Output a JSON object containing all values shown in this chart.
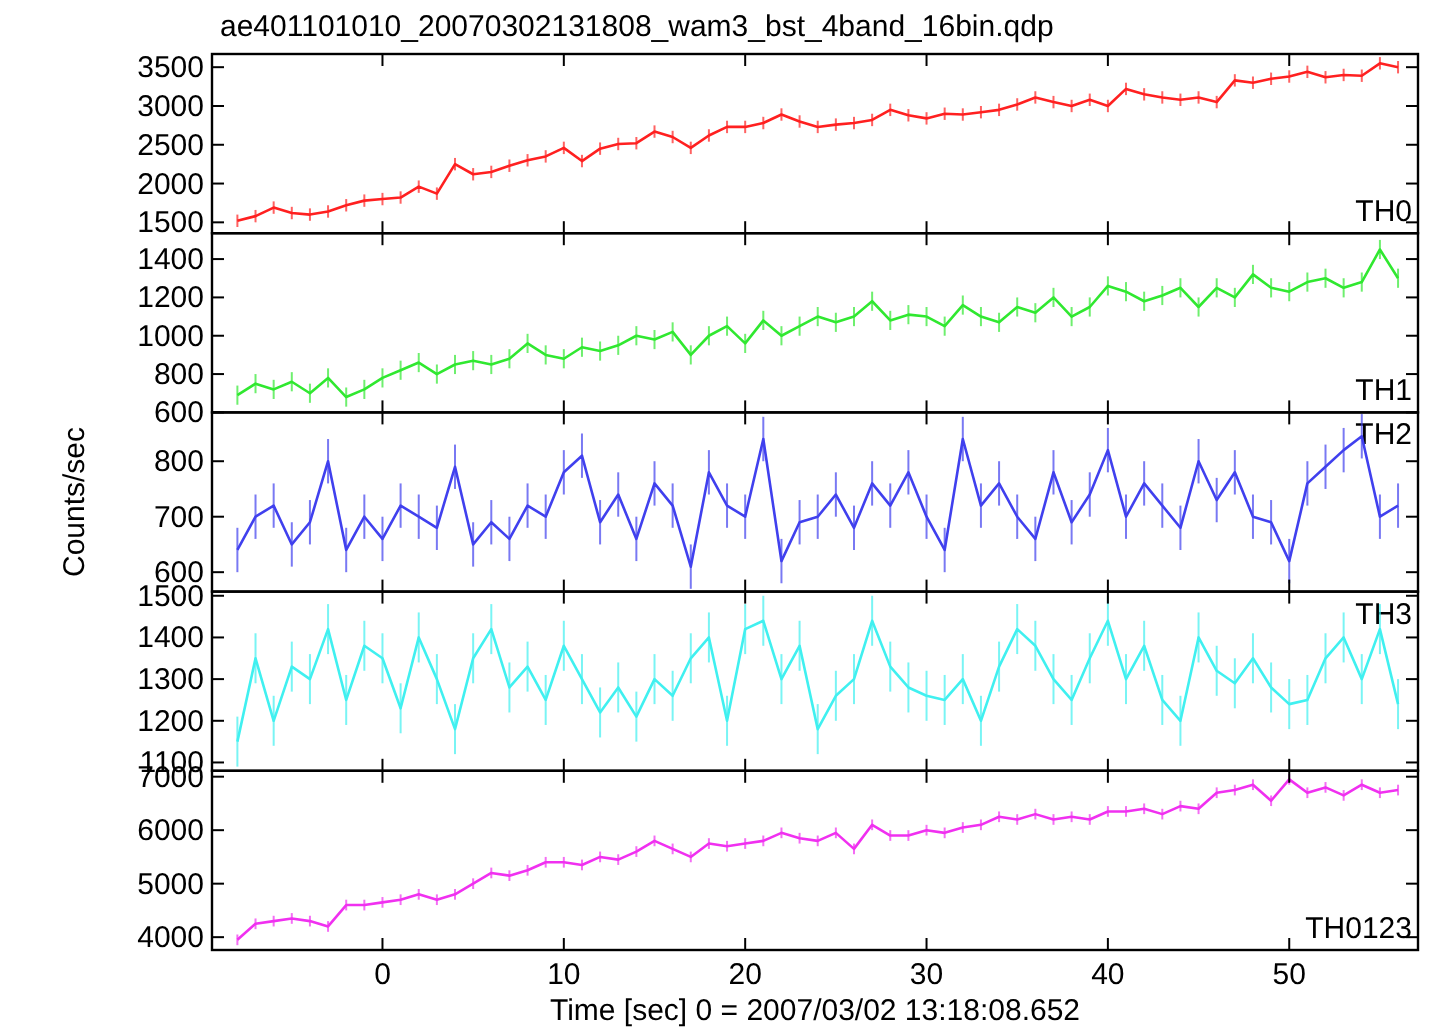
{
  "chart_data": [
    {
      "type": "line",
      "title": "ae401101010_20070302131808_wam3_bst_4band_16bin.qdp",
      "tick_labels": "y",
      "marker": "none",
      "line_style": "solid",
      "xlim": [
        -9.4,
        57.1
      ],
      "xticks": [
        0,
        10,
        20,
        30,
        40,
        50
      ],
      "ylim": [
        1360,
        3670
      ],
      "yticks": [
        1500,
        2000,
        2500,
        3000,
        3500
      ],
      "x": [
        -8,
        -7,
        -6,
        -5,
        -4,
        -3,
        -2,
        -1,
        0,
        1,
        2,
        3,
        4,
        5,
        6,
        7,
        8,
        9,
        10,
        11,
        12,
        13,
        14,
        15,
        16,
        17,
        18,
        19,
        20,
        21,
        22,
        23,
        24,
        25,
        26,
        27,
        28,
        29,
        30,
        31,
        32,
        33,
        34,
        35,
        36,
        37,
        38,
        39,
        40,
        41,
        42,
        43,
        44,
        45,
        46,
        47,
        48,
        49,
        50,
        51,
        52,
        53,
        54,
        55,
        56
      ],
      "series": [
        {
          "name": "TH0",
          "color": "#ff2020",
          "values": [
            1520,
            1580,
            1690,
            1620,
            1600,
            1640,
            1720,
            1780,
            1800,
            1820,
            1960,
            1870,
            2250,
            2120,
            2150,
            2230,
            2300,
            2350,
            2460,
            2290,
            2450,
            2510,
            2520,
            2670,
            2600,
            2460,
            2620,
            2730,
            2730,
            2780,
            2890,
            2800,
            2730,
            2760,
            2780,
            2820,
            2950,
            2880,
            2840,
            2900,
            2890,
            2920,
            2950,
            3020,
            3110,
            3050,
            3000,
            3080,
            3000,
            3220,
            3150,
            3110,
            3080,
            3110,
            3050,
            3330,
            3300,
            3350,
            3380,
            3440,
            3370,
            3400,
            3390,
            3550,
            3500
          ],
          "errors": [
            80,
            80,
            80,
            80,
            80,
            80,
            80,
            80,
            80,
            80,
            80,
            80,
            80,
            80,
            80,
            80,
            80,
            80,
            80,
            80,
            80,
            80,
            80,
            80,
            80,
            80,
            80,
            80,
            80,
            80,
            80,
            80,
            80,
            80,
            80,
            80,
            80,
            80,
            80,
            80,
            80,
            80,
            80,
            80,
            80,
            80,
            80,
            80,
            80,
            80,
            80,
            80,
            80,
            80,
            80,
            80,
            80,
            80,
            80,
            80,
            80,
            80,
            80,
            80,
            80
          ]
        }
      ]
    },
    {
      "type": "line",
      "tick_labels": "y",
      "marker": "none",
      "line_style": "solid",
      "xlim": [
        -9.4,
        57.1
      ],
      "xticks": [
        0,
        10,
        20,
        30,
        40,
        50
      ],
      "ylim": [
        600,
        1535
      ],
      "yticks": [
        600,
        800,
        1000,
        1200,
        1400
      ],
      "x": [
        -8,
        -7,
        -6,
        -5,
        -4,
        -3,
        -2,
        -1,
        0,
        1,
        2,
        3,
        4,
        5,
        6,
        7,
        8,
        9,
        10,
        11,
        12,
        13,
        14,
        15,
        16,
        17,
        18,
        19,
        20,
        21,
        22,
        23,
        24,
        25,
        26,
        27,
        28,
        29,
        30,
        31,
        32,
        33,
        34,
        35,
        36,
        37,
        38,
        39,
        40,
        41,
        42,
        43,
        44,
        45,
        46,
        47,
        48,
        49,
        50,
        51,
        52,
        53,
        54,
        55,
        56
      ],
      "series": [
        {
          "name": "TH1",
          "color": "#30e830",
          "values": [
            690,
            750,
            720,
            760,
            700,
            780,
            680,
            720,
            780,
            820,
            860,
            800,
            850,
            870,
            850,
            880,
            960,
            900,
            880,
            940,
            920,
            950,
            1000,
            980,
            1020,
            900,
            1000,
            1050,
            960,
            1080,
            1000,
            1050,
            1100,
            1070,
            1100,
            1180,
            1080,
            1110,
            1100,
            1050,
            1160,
            1100,
            1070,
            1150,
            1120,
            1200,
            1100,
            1150,
            1260,
            1230,
            1180,
            1210,
            1250,
            1150,
            1250,
            1200,
            1320,
            1250,
            1230,
            1280,
            1300,
            1250,
            1280,
            1450,
            1300
          ],
          "errors": [
            50,
            50,
            50,
            50,
            50,
            50,
            50,
            50,
            50,
            50,
            50,
            50,
            50,
            50,
            50,
            50,
            50,
            50,
            50,
            50,
            50,
            50,
            50,
            50,
            50,
            50,
            50,
            50,
            50,
            50,
            50,
            50,
            50,
            50,
            50,
            50,
            50,
            50,
            50,
            50,
            50,
            50,
            50,
            50,
            50,
            50,
            50,
            50,
            50,
            50,
            50,
            50,
            50,
            50,
            50,
            50,
            50,
            50,
            50,
            50,
            50,
            50,
            50,
            50,
            50
          ]
        }
      ]
    },
    {
      "type": "line",
      "ylabel": "Counts/sec",
      "tick_labels": "y",
      "marker": "none",
      "line_style": "solid",
      "xlim": [
        -9.4,
        57.1
      ],
      "xticks": [
        0,
        10,
        20,
        30,
        40,
        50
      ],
      "ylim": [
        565,
        888
      ],
      "yticks": [
        600,
        700,
        800
      ],
      "x": [
        -8,
        -7,
        -6,
        -5,
        -4,
        -3,
        -2,
        -1,
        0,
        1,
        2,
        3,
        4,
        5,
        6,
        7,
        8,
        9,
        10,
        11,
        12,
        13,
        14,
        15,
        16,
        17,
        18,
        19,
        20,
        21,
        22,
        23,
        24,
        25,
        26,
        27,
        28,
        29,
        30,
        31,
        32,
        33,
        34,
        35,
        36,
        37,
        38,
        39,
        40,
        41,
        42,
        43,
        44,
        45,
        46,
        47,
        48,
        49,
        50,
        51,
        52,
        53,
        54,
        55,
        56
      ],
      "series": [
        {
          "name": "TH2",
          "color": "#4040ee",
          "values": [
            640,
            700,
            720,
            650,
            690,
            800,
            640,
            700,
            660,
            720,
            700,
            680,
            790,
            650,
            690,
            660,
            720,
            700,
            780,
            810,
            690,
            740,
            660,
            760,
            720,
            610,
            780,
            720,
            700,
            840,
            620,
            690,
            700,
            740,
            680,
            760,
            720,
            780,
            700,
            640,
            840,
            720,
            760,
            700,
            660,
            780,
            690,
            740,
            820,
            700,
            760,
            720,
            680,
            800,
            730,
            780,
            700,
            690,
            620,
            760,
            790,
            820,
            845,
            700,
            720
          ],
          "errors": [
            40,
            40,
            40,
            40,
            40,
            40,
            40,
            40,
            40,
            40,
            40,
            40,
            40,
            40,
            40,
            40,
            40,
            40,
            40,
            40,
            40,
            40,
            40,
            40,
            40,
            40,
            40,
            40,
            40,
            40,
            40,
            40,
            40,
            40,
            40,
            40,
            40,
            40,
            40,
            40,
            40,
            40,
            40,
            40,
            40,
            40,
            40,
            40,
            40,
            40,
            40,
            40,
            40,
            40,
            40,
            40,
            40,
            40,
            40,
            40,
            40,
            40,
            40,
            40,
            40
          ]
        }
      ]
    },
    {
      "type": "line",
      "tick_labels": "y",
      "marker": "none",
      "line_style": "solid",
      "xlim": [
        -9.4,
        57.1
      ],
      "xticks": [
        0,
        10,
        20,
        30,
        40,
        50
      ],
      "ylim": [
        1080,
        1510
      ],
      "yticks": [
        1100,
        1200,
        1300,
        1400,
        1500
      ],
      "x": [
        -8,
        -7,
        -6,
        -5,
        -4,
        -3,
        -2,
        -1,
        0,
        1,
        2,
        3,
        4,
        5,
        6,
        7,
        8,
        9,
        10,
        11,
        12,
        13,
        14,
        15,
        16,
        17,
        18,
        19,
        20,
        21,
        22,
        23,
        24,
        25,
        26,
        27,
        28,
        29,
        30,
        31,
        32,
        33,
        34,
        35,
        36,
        37,
        38,
        39,
        40,
        41,
        42,
        43,
        44,
        45,
        46,
        47,
        48,
        49,
        50,
        51,
        52,
        53,
        54,
        55,
        56
      ],
      "series": [
        {
          "name": "TH3",
          "color": "#40f0f0",
          "values": [
            1150,
            1350,
            1200,
            1330,
            1300,
            1420,
            1250,
            1380,
            1350,
            1230,
            1400,
            1300,
            1180,
            1350,
            1420,
            1280,
            1330,
            1250,
            1380,
            1300,
            1220,
            1280,
            1210,
            1300,
            1260,
            1350,
            1400,
            1200,
            1420,
            1440,
            1300,
            1380,
            1180,
            1260,
            1300,
            1440,
            1330,
            1280,
            1260,
            1250,
            1300,
            1200,
            1330,
            1420,
            1380,
            1300,
            1250,
            1350,
            1440,
            1300,
            1380,
            1250,
            1200,
            1400,
            1320,
            1290,
            1350,
            1280,
            1240,
            1250,
            1350,
            1400,
            1300,
            1420,
            1240
          ],
          "errors": [
            60,
            60,
            60,
            60,
            60,
            60,
            60,
            60,
            60,
            60,
            60,
            60,
            60,
            60,
            60,
            60,
            60,
            60,
            60,
            60,
            60,
            60,
            60,
            60,
            60,
            60,
            60,
            60,
            60,
            60,
            60,
            60,
            60,
            60,
            60,
            60,
            60,
            60,
            60,
            60,
            60,
            60,
            60,
            60,
            60,
            60,
            60,
            60,
            60,
            60,
            60,
            60,
            60,
            60,
            60,
            60,
            60,
            60,
            60,
            60,
            60,
            60,
            60,
            60,
            60
          ]
        }
      ]
    },
    {
      "type": "line",
      "xlabel": "Time [sec] 0 = 2007/03/02 13:18:08.652",
      "marker": "none",
      "line_style": "solid",
      "xlim": [
        -9.4,
        57.1
      ],
      "xticks": [
        0,
        10,
        20,
        30,
        40,
        50
      ],
      "ylim": [
        3760,
        7110
      ],
      "yticks": [
        4000,
        5000,
        6000,
        7000
      ],
      "x": [
        -8,
        -7,
        -6,
        -5,
        -4,
        -3,
        -2,
        -1,
        0,
        1,
        2,
        3,
        4,
        5,
        6,
        7,
        8,
        9,
        10,
        11,
        12,
        13,
        14,
        15,
        16,
        17,
        18,
        19,
        20,
        21,
        22,
        23,
        24,
        25,
        26,
        27,
        28,
        29,
        30,
        31,
        32,
        33,
        34,
        35,
        36,
        37,
        38,
        39,
        40,
        41,
        42,
        43,
        44,
        45,
        46,
        47,
        48,
        49,
        50,
        51,
        52,
        53,
        54,
        55,
        56
      ],
      "series": [
        {
          "name": "TH0123",
          "color": "#f030f0",
          "values": [
            3950,
            4250,
            4300,
            4350,
            4300,
            4200,
            4600,
            4600,
            4650,
            4700,
            4800,
            4700,
            4800,
            5000,
            5200,
            5150,
            5250,
            5400,
            5400,
            5350,
            5500,
            5450,
            5600,
            5800,
            5650,
            5500,
            5750,
            5700,
            5750,
            5800,
            5950,
            5850,
            5800,
            5950,
            5650,
            6100,
            5900,
            5900,
            6000,
            5950,
            6050,
            6100,
            6250,
            6200,
            6300,
            6200,
            6250,
            6200,
            6350,
            6350,
            6400,
            6300,
            6450,
            6400,
            6700,
            6750,
            6850,
            6550,
            6950,
            6700,
            6800,
            6650,
            6850,
            6700,
            6750
          ],
          "errors": [
            100,
            100,
            100,
            100,
            100,
            100,
            100,
            100,
            100,
            100,
            100,
            100,
            100,
            100,
            100,
            100,
            100,
            100,
            100,
            100,
            100,
            100,
            100,
            100,
            100,
            100,
            100,
            100,
            100,
            100,
            100,
            100,
            100,
            100,
            100,
            100,
            100,
            100,
            100,
            100,
            100,
            100,
            100,
            100,
            100,
            100,
            100,
            100,
            100,
            100,
            100,
            100,
            100,
            100,
            100,
            100,
            100,
            100,
            100,
            100,
            100,
            100,
            100,
            100,
            100
          ]
        }
      ]
    }
  ]
}
